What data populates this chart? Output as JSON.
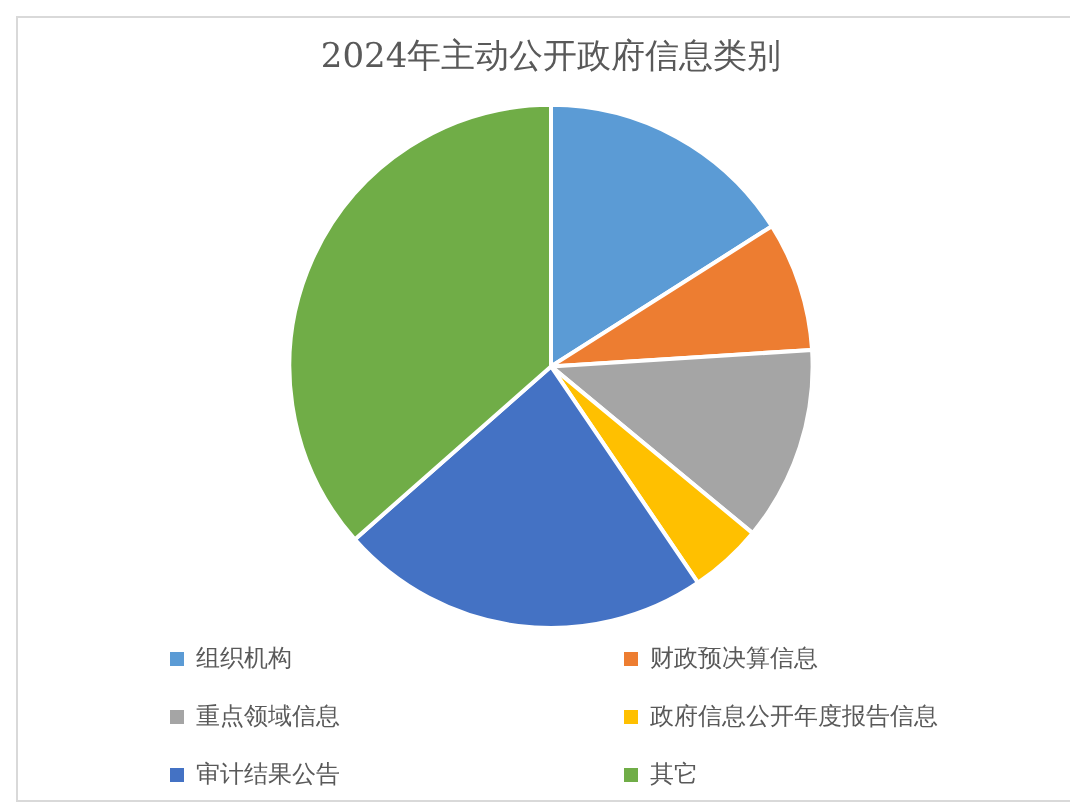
{
  "chart_data": {
    "type": "pie",
    "title": "2024年主动公开政府信息类别",
    "categories": [
      "组织机构",
      "财政预决算信息",
      "重点领域信息",
      "政府信息公开年度报告信息",
      "审计结果公告",
      "其它"
    ],
    "values": [
      16,
      8,
      12,
      4.5,
      23,
      36.5
    ],
    "colors": [
      "#5b9bd5",
      "#ed7d31",
      "#a5a5a5",
      "#ffc000",
      "#4472c4",
      "#70ad47"
    ],
    "legend": "bottom"
  }
}
